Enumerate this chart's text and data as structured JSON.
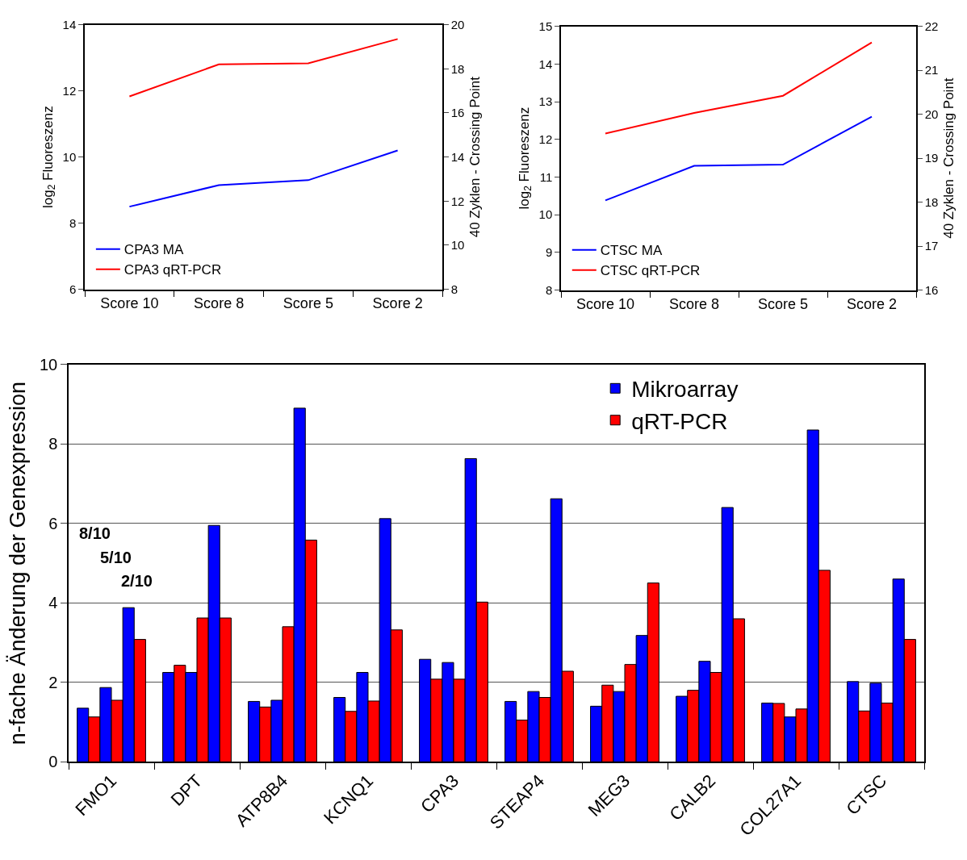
{
  "chart_data": [
    {
      "type": "line",
      "categories": [
        "Score 10",
        "Score 8",
        "Score 5",
        "Score 2"
      ],
      "ylabel": "log$_{2}$ Fluoreszenz",
      "y2label": "40 Zyklen - Crossing Point",
      "ylim": [
        6,
        14
      ],
      "yticks": [
        6,
        8,
        10,
        12,
        14
      ],
      "y2lim": [
        8,
        20
      ],
      "y2ticks": [
        8,
        10,
        12,
        14,
        16,
        18,
        20
      ],
      "legend": "bottom left",
      "grid": false,
      "series": [
        {
          "name": "CPA3 MA",
          "color": "#0000ff",
          "values": [
            8.5,
            9.15,
            9.3,
            10.2
          ]
        },
        {
          "name": "CPA3 qRT-PCR",
          "color": "#ff0000",
          "axis": "y2",
          "values": [
            16.75,
            18.2,
            18.25,
            19.35
          ]
        }
      ]
    },
    {
      "type": "line",
      "categories": [
        "Score 10",
        "Score 8",
        "Score 5",
        "Score 2"
      ],
      "ylabel": "log$_{2}$ Fluoreszenz",
      "y2label": "40 Zyklen - Crossing Point",
      "ylim": [
        8,
        15
      ],
      "yticks": [
        8,
        9,
        10,
        11,
        12,
        13,
        14,
        15
      ],
      "y2lim": [
        16,
        22
      ],
      "y2ticks": [
        16,
        17,
        18,
        19,
        20,
        21,
        22
      ],
      "legend": "bottom left",
      "grid": false,
      "series": [
        {
          "name": "CTSC MA",
          "color": "#0000ff",
          "values": [
            10.38,
            11.3,
            11.33,
            12.6
          ]
        },
        {
          "name": "CTSC qRT-PCR",
          "color": "#ff0000",
          "axis": "y2",
          "values": [
            19.56,
            20.03,
            20.42,
            21.63
          ]
        }
      ]
    },
    {
      "type": "bar",
      "categories": [
        "FMO1",
        "DPT",
        "ATP8B4",
        "KCNQ1",
        "CPA3",
        "STEAP4",
        "MEG3",
        "CALB2",
        "COL27A1",
        "CTSC"
      ],
      "ylabel": "n-fache Änderung der Genexpression",
      "ylim": [
        0,
        10
      ],
      "yticks": [
        0,
        2,
        4,
        6,
        8,
        10
      ],
      "grid": "y",
      "legend": "top right",
      "annotations": [
        "8/10",
        "5/10",
        "2/10"
      ],
      "series": [
        {
          "name": "Mikroarray",
          "color": "#0000ff",
          "values": [
            1.35,
            2.25,
            1.52,
            1.62,
            2.58,
            1.52,
            1.4,
            1.65,
            1.48,
            2.02
          ]
        },
        {
          "name": "qRT-PCR",
          "color": "#ff0000",
          "values": [
            1.13,
            2.43,
            1.38,
            1.27,
            2.08,
            1.05,
            1.93,
            1.8,
            1.47,
            1.28
          ]
        },
        {
          "color": "#0000ff",
          "values": [
            1.87,
            2.25,
            1.55,
            2.25,
            2.5,
            1.77,
            1.77,
            2.53,
            1.13,
            1.98
          ]
        },
        {
          "color": "#ff0000",
          "values": [
            1.55,
            3.62,
            3.4,
            1.53,
            2.08,
            1.62,
            2.45,
            2.25,
            1.33,
            1.48
          ]
        },
        {
          "color": "#0000ff",
          "values": [
            3.88,
            5.95,
            8.9,
            6.12,
            7.63,
            6.62,
            3.18,
            6.4,
            8.35,
            4.6
          ]
        },
        {
          "color": "#ff0000",
          "values": [
            3.08,
            3.62,
            5.58,
            3.32,
            4.02,
            2.28,
            4.5,
            3.6,
            4.82,
            3.08
          ]
        }
      ]
    }
  ]
}
